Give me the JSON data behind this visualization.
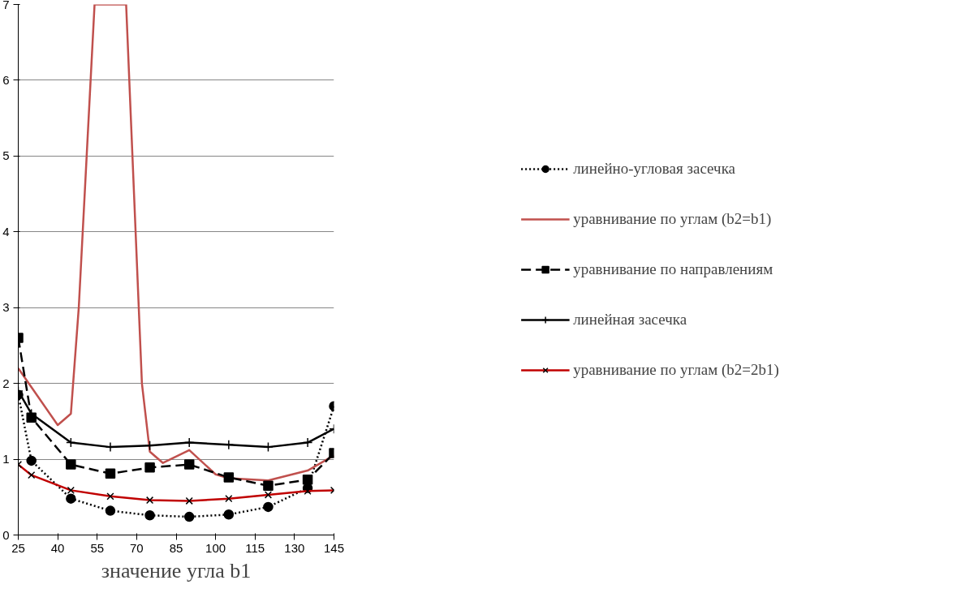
{
  "chart_data": {
    "type": "line",
    "xlabel": "значение угла b1",
    "xlim": [
      25,
      145
    ],
    "ylim": [
      0,
      7
    ],
    "xticks": [
      25,
      40,
      55,
      70,
      85,
      100,
      115,
      130,
      145
    ],
    "yticks": [
      0,
      1,
      2,
      3,
      4,
      5,
      6,
      7
    ],
    "grid": "y",
    "legend": "right",
    "series": [
      {
        "name": "линейно-угловая засечка",
        "color": "#000000",
        "marker": "circle",
        "line_style": "dotted",
        "x": [
          25,
          30,
          45,
          60,
          75,
          90,
          105,
          120,
          135,
          145
        ],
        "values": [
          1.85,
          0.98,
          0.48,
          0.32,
          0.26,
          0.24,
          0.27,
          0.37,
          0.62,
          1.7
        ]
      },
      {
        "name": "уравнивание по углам (b2=b1)",
        "color": "#c0504d",
        "marker": "none",
        "line_style": "solid",
        "x": [
          25,
          30,
          40,
          45,
          48,
          51,
          54,
          66,
          69,
          72,
          75,
          80,
          90,
          100,
          105,
          120,
          135,
          145
        ],
        "values": [
          2.2,
          1.95,
          1.45,
          1.6,
          3,
          5,
          7,
          7,
          4.5,
          2,
          1.1,
          0.95,
          1.12,
          0.8,
          0.75,
          0.72,
          0.85,
          1.05
        ]
      },
      {
        "name": "уравнивание по направлениям",
        "color": "#000000",
        "marker": "square",
        "line_style": "dashed",
        "x": [
          25,
          30,
          45,
          60,
          75,
          90,
          105,
          120,
          135,
          145
        ],
        "values": [
          2.6,
          1.55,
          0.93,
          0.81,
          0.89,
          0.93,
          0.76,
          0.65,
          0.73,
          1.08
        ]
      },
      {
        "name": "линейная засечка",
        "color": "#000000",
        "marker": "cross",
        "line_style": "solid",
        "x": [
          25,
          30,
          45,
          60,
          75,
          90,
          105,
          120,
          135,
          145
        ],
        "values": [
          1.9,
          1.6,
          1.22,
          1.16,
          1.18,
          1.22,
          1.19,
          1.16,
          1.22,
          1.4
        ]
      },
      {
        "name": "уравнивание по углам (b2=2b1)",
        "color": "#c00000",
        "marker": "x",
        "line_style": "solid",
        "x": [
          25,
          30,
          45,
          60,
          75,
          90,
          105,
          120,
          135,
          145
        ],
        "values": [
          0.93,
          0.79,
          0.59,
          0.51,
          0.46,
          0.45,
          0.48,
          0.53,
          0.58,
          0.59
        ]
      }
    ]
  }
}
